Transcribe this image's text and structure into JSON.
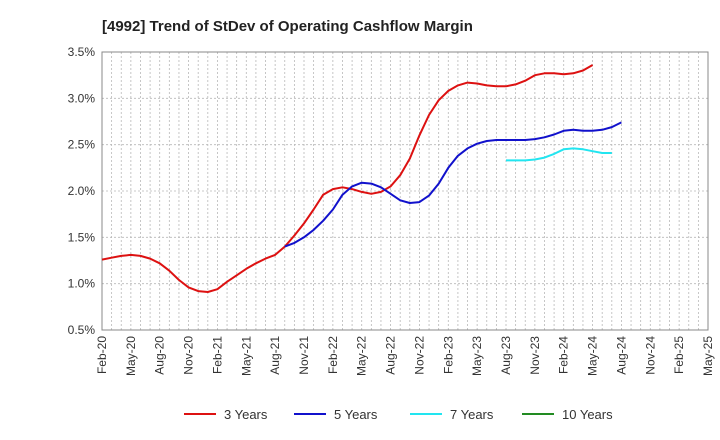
{
  "chart_data": {
    "type": "line",
    "title": "[4992]  Trend of StDev of Operating Cashflow Margin",
    "xlabel": "",
    "ylabel": "",
    "ylim": [
      0.5,
      3.5
    ],
    "y_ticks": [
      "0.5%",
      "1.0%",
      "1.5%",
      "2.0%",
      "2.5%",
      "3.0%",
      "3.5%"
    ],
    "x_ticks": [
      "Feb-20",
      "May-20",
      "Aug-20",
      "Nov-20",
      "Feb-21",
      "May-21",
      "Aug-21",
      "Nov-21",
      "Feb-22",
      "May-22",
      "Aug-22",
      "Nov-22",
      "Feb-23",
      "May-23",
      "Aug-23",
      "Nov-23",
      "Feb-24",
      "May-24",
      "Aug-24",
      "Nov-24",
      "Feb-25",
      "May-25"
    ],
    "grid": true,
    "legend_position": "bottom",
    "series": [
      {
        "name": "3 Years",
        "color": "#dd1111",
        "start_index": 0,
        "values": [
          1.26,
          1.28,
          1.3,
          1.31,
          1.3,
          1.27,
          1.22,
          1.14,
          1.04,
          0.96,
          0.92,
          0.91,
          0.94,
          1.02,
          1.09,
          1.16,
          1.22,
          1.27,
          1.31,
          1.4,
          1.52,
          1.65,
          1.8,
          1.96,
          2.02,
          2.04,
          2.02,
          1.99,
          1.97,
          1.99,
          2.05,
          2.17,
          2.35,
          2.6,
          2.82,
          2.98,
          3.08,
          3.14,
          3.17,
          3.16,
          3.14,
          3.13,
          3.13,
          3.15,
          3.19,
          3.25,
          3.27,
          3.27,
          3.26,
          3.27,
          3.3,
          3.36
        ]
      },
      {
        "name": "5 Years",
        "color": "#1111cc",
        "start_index": 19,
        "values": [
          1.4,
          1.44,
          1.5,
          1.58,
          1.68,
          1.8,
          1.96,
          2.05,
          2.09,
          2.08,
          2.04,
          1.97,
          1.9,
          1.87,
          1.88,
          1.95,
          2.08,
          2.25,
          2.38,
          2.46,
          2.51,
          2.54,
          2.55,
          2.55,
          2.55,
          2.55,
          2.56,
          2.58,
          2.61,
          2.65,
          2.66,
          2.65,
          2.65,
          2.66,
          2.69,
          2.74
        ]
      },
      {
        "name": "7 Years",
        "color": "#22e5f0",
        "start_index": 42,
        "values": [
          2.33,
          2.33,
          2.33,
          2.34,
          2.36,
          2.4,
          2.45,
          2.46,
          2.45,
          2.43,
          2.41,
          2.41
        ]
      },
      {
        "name": "10 Years",
        "color": "#228b22",
        "start_index": 0,
        "values": []
      }
    ]
  }
}
